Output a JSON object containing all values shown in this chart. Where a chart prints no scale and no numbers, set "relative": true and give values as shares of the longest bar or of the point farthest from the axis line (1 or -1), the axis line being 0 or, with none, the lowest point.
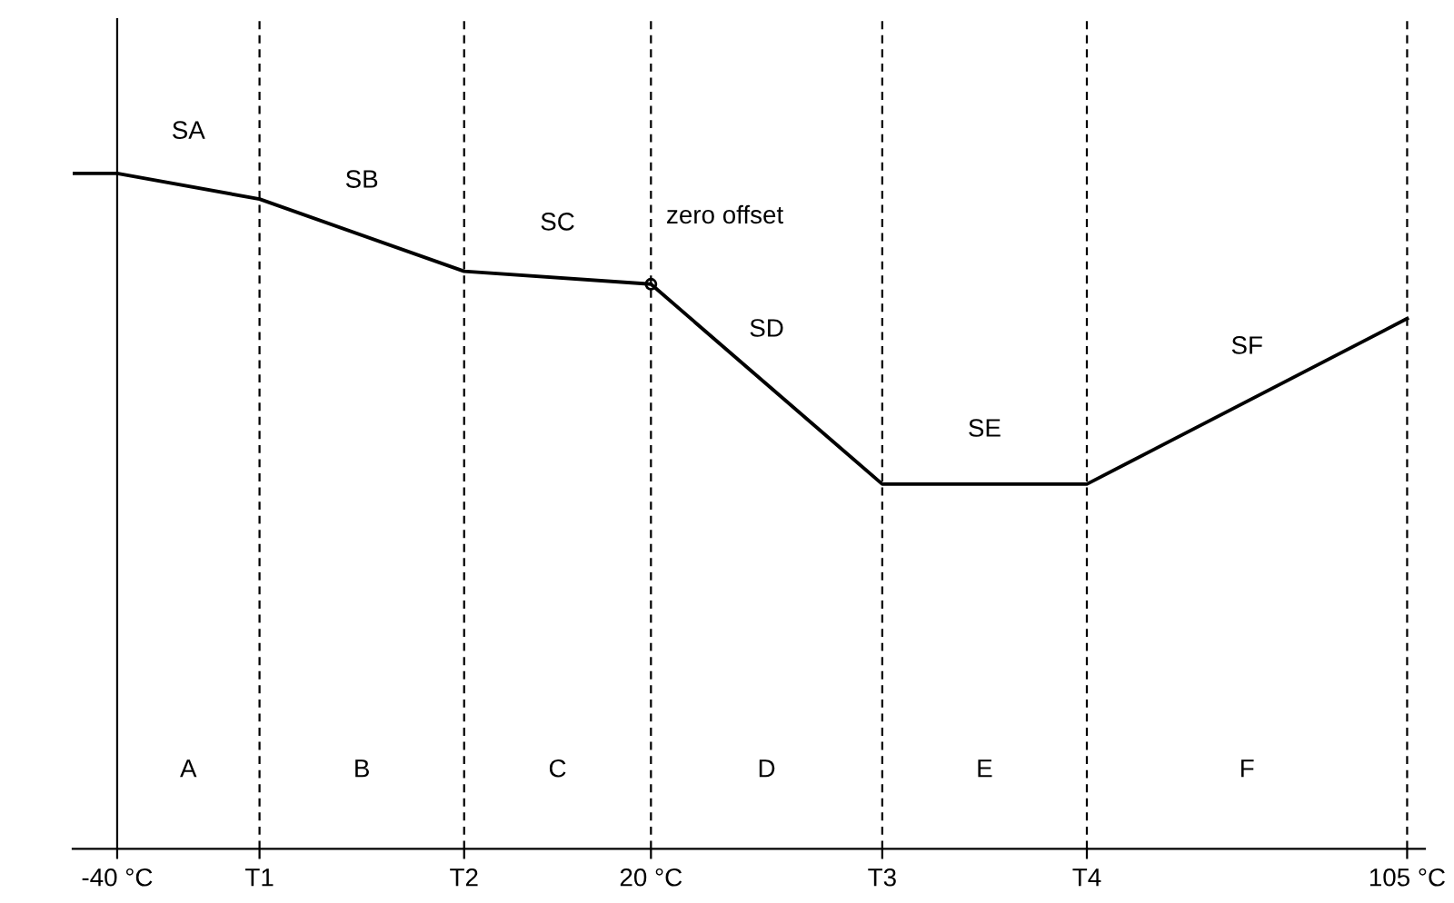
{
  "chart_data": {
    "type": "line",
    "relative": true,
    "x": [
      -45,
      -40,
      -24,
      -1,
      20,
      46,
      69,
      105
    ],
    "series": [
      {
        "color": "#000000",
        "values": [
          1,
          1,
          0.962,
          0.855,
          0.836,
          0.54,
          0.54,
          0.785
        ]
      }
    ],
    "xlim": [
      -45,
      107
    ],
    "xticks": [
      {
        "value": -40,
        "label": "-40 °C"
      },
      {
        "value": -24,
        "label": "T1"
      },
      {
        "value": -1,
        "label": "T2"
      },
      {
        "value": 20,
        "label": "20 °C"
      },
      {
        "value": 46,
        "label": "T3"
      },
      {
        "value": 69,
        "label": "T4"
      },
      {
        "value": 105,
        "label": "105 °C"
      }
    ],
    "tick_labels": "x",
    "grid": false,
    "marker": "none",
    "line_style": "solid",
    "ref_lines": [
      {
        "axis": "x",
        "value": -40,
        "label": null,
        "color": "#000000",
        "line_style": "solid"
      },
      {
        "axis": "x",
        "value": -24,
        "label": null,
        "color": "#000000",
        "line_style": "dashed"
      },
      {
        "axis": "x",
        "value": -1,
        "label": null,
        "color": "#000000",
        "line_style": "dashed"
      },
      {
        "axis": "x",
        "value": 20,
        "label": null,
        "color": "#000000",
        "line_style": "dashed"
      },
      {
        "axis": "x",
        "value": 46,
        "label": null,
        "color": "#000000",
        "line_style": "dashed"
      },
      {
        "axis": "x",
        "value": 69,
        "label": null,
        "color": "#000000",
        "line_style": "dashed"
      },
      {
        "axis": "x",
        "value": 105,
        "label": null,
        "color": "#000000",
        "line_style": "dashed"
      }
    ],
    "annotations": [
      "SA",
      "SB",
      "SC",
      "SD",
      "SE",
      "SF",
      {
        "text": "zero offset",
        "x": 20,
        "y": 0.836
      },
      "A",
      "B",
      "C",
      "D",
      "E",
      "F"
    ]
  }
}
